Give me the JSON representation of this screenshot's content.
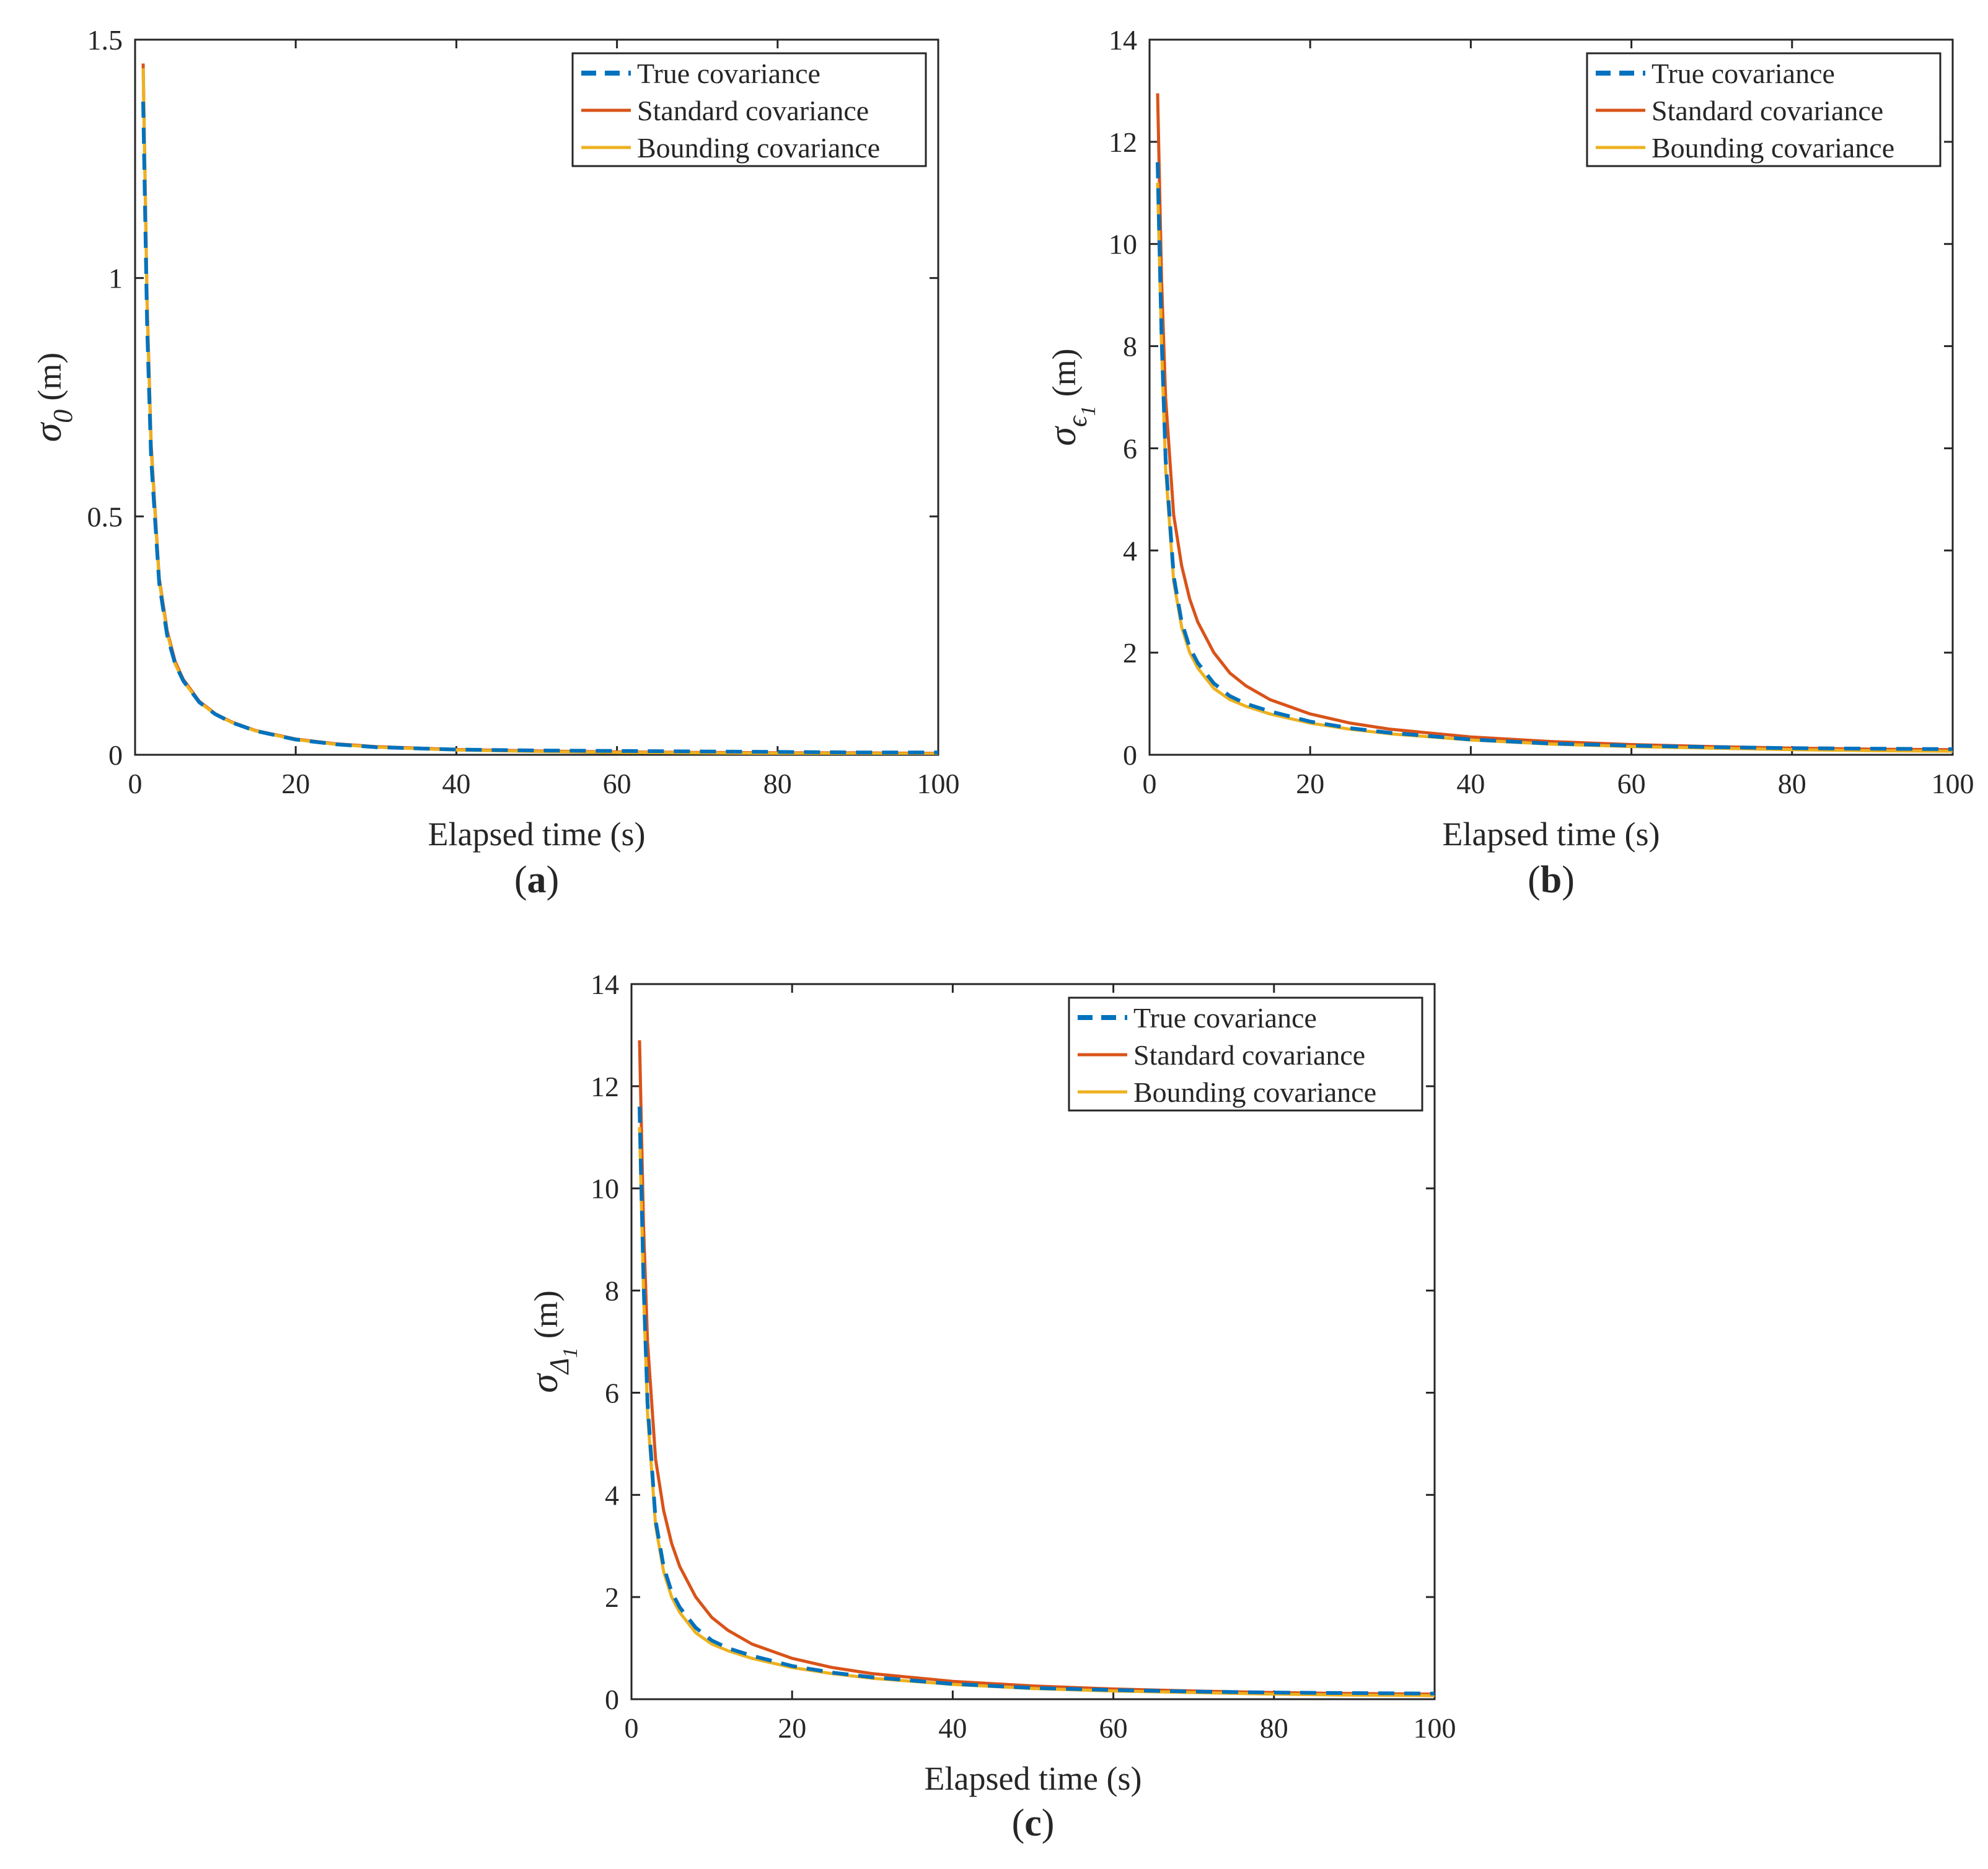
{
  "chart_data": [
    {
      "type": "line",
      "panel_label": "a",
      "xlabel": "Elapsed time (s)",
      "ylabel": {
        "symbol": "σ",
        "sub": "0",
        "subsub": "",
        "unit": "(m)"
      },
      "xlim": [
        0,
        100
      ],
      "ylim": [
        0,
        1.5
      ],
      "xticks": [
        0,
        20,
        40,
        60,
        80,
        100
      ],
      "yticks": [
        0,
        0.5,
        1,
        1.5
      ],
      "ytick_labels": [
        "0",
        "0.5",
        "1",
        "1.5"
      ],
      "grid": false,
      "legend_position": "top-right",
      "series": [
        {
          "name": "True covariance",
          "color": "#0072BD",
          "style": "dashed",
          "x": [
            1,
            1.5,
            2,
            3,
            4,
            5,
            6,
            8,
            10,
            12,
            15,
            20,
            25,
            30,
            40,
            50,
            60,
            70,
            80,
            90,
            100
          ],
          "y": [
            1.37,
            0.9,
            0.62,
            0.36,
            0.25,
            0.19,
            0.155,
            0.11,
            0.085,
            0.068,
            0.05,
            0.032,
            0.022,
            0.016,
            0.011,
            0.009,
            0.008,
            0.007,
            0.006,
            0.005,
            0.005
          ]
        },
        {
          "name": "Standard covariance",
          "color": "#D95319",
          "style": "solid",
          "x": [
            1,
            1.5,
            2,
            3,
            4,
            5,
            6,
            8,
            10,
            12,
            15,
            20,
            25,
            30,
            40,
            50,
            60,
            70,
            80,
            90,
            100
          ],
          "y": [
            1.45,
            0.95,
            0.65,
            0.37,
            0.26,
            0.195,
            0.158,
            0.112,
            0.086,
            0.069,
            0.051,
            0.033,
            0.023,
            0.017,
            0.011,
            0.008,
            0.006,
            0.005,
            0.004,
            0.004,
            0.003
          ]
        },
        {
          "name": "Bounding covariance",
          "color": "#EDB120",
          "style": "solid",
          "x": [
            1,
            1.5,
            2,
            3,
            4,
            5,
            6,
            8,
            10,
            12,
            15,
            20,
            25,
            30,
            40,
            50,
            60,
            70,
            80,
            90,
            100
          ],
          "y": [
            1.44,
            0.94,
            0.64,
            0.365,
            0.255,
            0.19,
            0.155,
            0.11,
            0.085,
            0.068,
            0.05,
            0.032,
            0.022,
            0.016,
            0.01,
            0.007,
            0.005,
            0.004,
            0.003,
            0.003,
            0.002
          ]
        }
      ]
    },
    {
      "type": "line",
      "panel_label": "b",
      "xlabel": "Elapsed time (s)",
      "ylabel": {
        "symbol": "σ",
        "sub": "ϵ",
        "subsub": "1",
        "unit": "(m)"
      },
      "xlim": [
        0,
        100
      ],
      "ylim": [
        0,
        14
      ],
      "xticks": [
        0,
        20,
        40,
        60,
        80,
        100
      ],
      "yticks": [
        0,
        2,
        4,
        6,
        8,
        10,
        12,
        14
      ],
      "ytick_labels": [
        "0",
        "2",
        "4",
        "6",
        "8",
        "10",
        "12",
        "14"
      ],
      "grid": false,
      "legend_position": "top-right",
      "series": [
        {
          "name": "True covariance",
          "color": "#0072BD",
          "style": "dashed",
          "x": [
            1,
            1.5,
            2,
            3,
            4,
            5,
            6,
            8,
            10,
            12,
            15,
            20,
            25,
            30,
            40,
            50,
            60,
            70,
            80,
            90,
            100
          ],
          "y": [
            11.6,
            8.2,
            5.8,
            3.5,
            2.6,
            2.1,
            1.8,
            1.4,
            1.15,
            1.0,
            0.85,
            0.65,
            0.52,
            0.43,
            0.3,
            0.22,
            0.18,
            0.15,
            0.13,
            0.12,
            0.11
          ]
        },
        {
          "name": "Standard covariance",
          "color": "#D95319",
          "style": "solid",
          "x": [
            1,
            1.5,
            2,
            3,
            4,
            5,
            6,
            8,
            10,
            12,
            15,
            20,
            25,
            30,
            40,
            50,
            60,
            70,
            80,
            90,
            100
          ],
          "y": [
            12.95,
            9.3,
            7.0,
            4.7,
            3.7,
            3.05,
            2.6,
            2.0,
            1.6,
            1.35,
            1.08,
            0.8,
            0.62,
            0.5,
            0.35,
            0.26,
            0.2,
            0.16,
            0.13,
            0.11,
            0.1
          ]
        },
        {
          "name": "Bounding covariance",
          "color": "#EDB120",
          "style": "solid",
          "x": [
            1,
            1.5,
            2,
            3,
            4,
            5,
            6,
            8,
            10,
            12,
            15,
            20,
            25,
            30,
            40,
            50,
            60,
            70,
            80,
            90,
            100
          ],
          "y": [
            11.2,
            8.0,
            5.6,
            3.4,
            2.5,
            2.0,
            1.7,
            1.3,
            1.08,
            0.95,
            0.8,
            0.62,
            0.5,
            0.41,
            0.29,
            0.21,
            0.16,
            0.13,
            0.1,
            0.08,
            0.07
          ]
        }
      ]
    },
    {
      "type": "line",
      "panel_label": "c",
      "xlabel": "Elapsed time (s)",
      "ylabel": {
        "symbol": "σ",
        "sub": "Δ",
        "subsub": "1",
        "unit": "(m)"
      },
      "xlim": [
        0,
        100
      ],
      "ylim": [
        0,
        14
      ],
      "xticks": [
        0,
        20,
        40,
        60,
        80,
        100
      ],
      "yticks": [
        0,
        2,
        4,
        6,
        8,
        10,
        12,
        14
      ],
      "ytick_labels": [
        "0",
        "2",
        "4",
        "6",
        "8",
        "10",
        "12",
        "14"
      ],
      "grid": false,
      "legend_position": "top-right",
      "series": [
        {
          "name": "True covariance",
          "color": "#0072BD",
          "style": "dashed",
          "x": [
            1,
            1.5,
            2,
            3,
            4,
            5,
            6,
            8,
            10,
            12,
            15,
            20,
            25,
            30,
            40,
            50,
            60,
            70,
            80,
            90,
            100
          ],
          "y": [
            11.6,
            8.2,
            5.8,
            3.5,
            2.6,
            2.1,
            1.8,
            1.4,
            1.15,
            1.0,
            0.85,
            0.65,
            0.52,
            0.43,
            0.3,
            0.22,
            0.18,
            0.15,
            0.13,
            0.12,
            0.11
          ]
        },
        {
          "name": "Standard covariance",
          "color": "#D95319",
          "style": "solid",
          "x": [
            1,
            1.5,
            2,
            3,
            4,
            5,
            6,
            8,
            10,
            12,
            15,
            20,
            25,
            30,
            40,
            50,
            60,
            70,
            80,
            90,
            100
          ],
          "y": [
            12.9,
            9.3,
            7.0,
            4.7,
            3.7,
            3.05,
            2.6,
            2.0,
            1.6,
            1.35,
            1.08,
            0.8,
            0.62,
            0.5,
            0.35,
            0.26,
            0.2,
            0.16,
            0.13,
            0.11,
            0.1
          ]
        },
        {
          "name": "Bounding covariance",
          "color": "#EDB120",
          "style": "solid",
          "x": [
            1,
            1.5,
            2,
            3,
            4,
            5,
            6,
            8,
            10,
            12,
            15,
            20,
            25,
            30,
            40,
            50,
            60,
            70,
            80,
            90,
            100
          ],
          "y": [
            11.2,
            8.0,
            5.6,
            3.4,
            2.5,
            2.0,
            1.7,
            1.3,
            1.08,
            0.95,
            0.8,
            0.62,
            0.5,
            0.41,
            0.29,
            0.21,
            0.16,
            0.13,
            0.1,
            0.08,
            0.07
          ]
        }
      ]
    }
  ]
}
